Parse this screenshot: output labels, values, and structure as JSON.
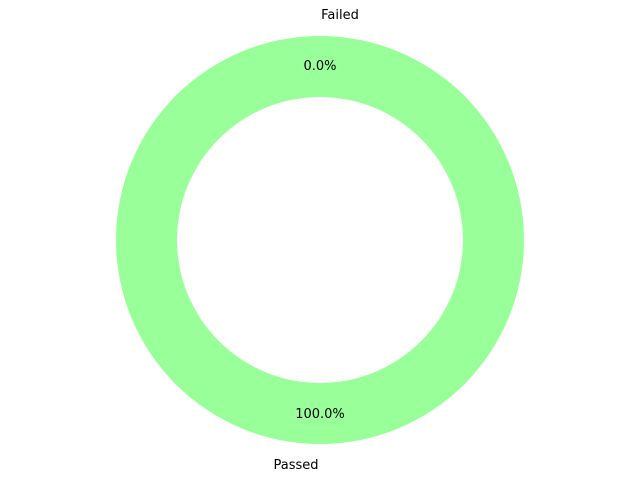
{
  "chart_data": {
    "type": "pie",
    "variant": "donut",
    "categories": [
      "Failed",
      "Passed"
    ],
    "values": [
      0,
      100
    ],
    "percent_labels": [
      "0.0%",
      "100.0%"
    ],
    "colors": [
      "#ff9999",
      "#99ff99"
    ]
  }
}
